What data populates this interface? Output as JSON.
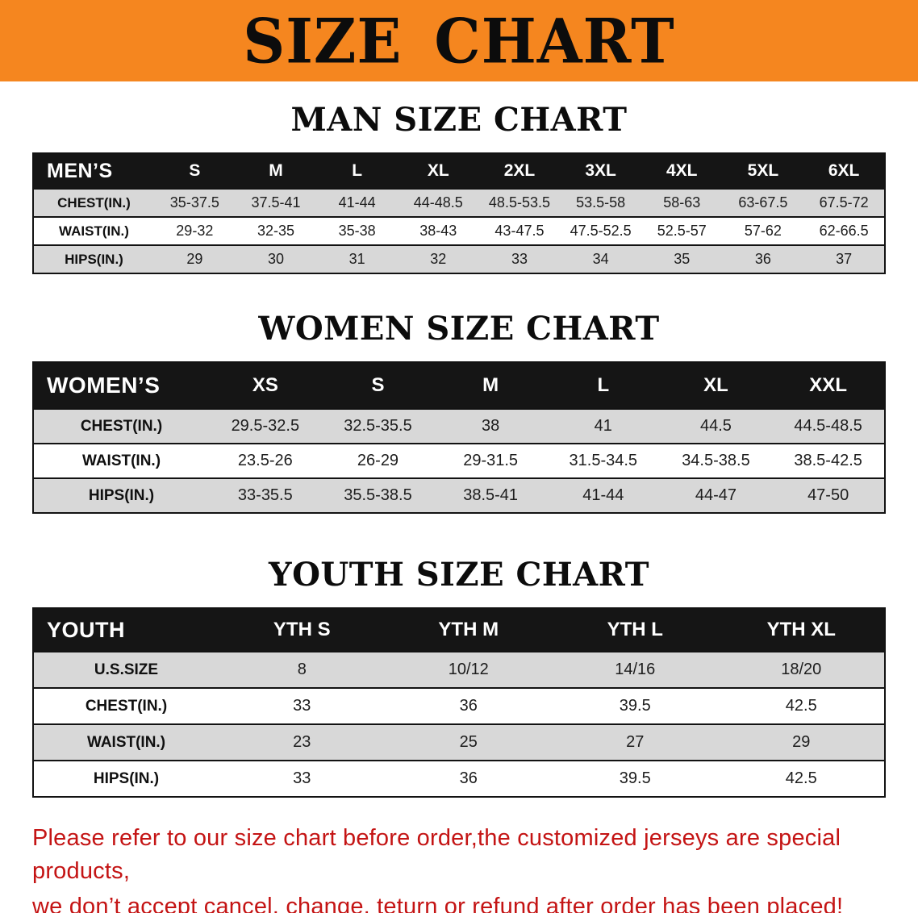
{
  "banner": {
    "title": "SIZE CHART"
  },
  "colors": {
    "banner-bg": "#F5861F",
    "table-header-bg": "#151515",
    "row-shade": "#D8D8D8",
    "note-red": "#C41414"
  },
  "sections": {
    "men": {
      "heading": "MAN SIZE CHART",
      "table": {
        "header": [
          "MEN’S",
          "S",
          "M",
          "L",
          "XL",
          "2XL",
          "3XL",
          "4XL",
          "5XL",
          "6XL"
        ],
        "rows": [
          {
            "label": "CHEST(IN.)",
            "values": [
              "35-37.5",
              "37.5-41",
              "41-44",
              "44-48.5",
              "48.5-53.5",
              "53.5-58",
              "58-63",
              "63-67.5",
              "67.5-72"
            ]
          },
          {
            "label": "WAIST(IN.)",
            "values": [
              "29-32",
              "32-35",
              "35-38",
              "38-43",
              "43-47.5",
              "47.5-52.5",
              "52.5-57",
              "57-62",
              "62-66.5"
            ]
          },
          {
            "label": "HIPS(IN.)",
            "values": [
              "29",
              "30",
              "31",
              "32",
              "33",
              "34",
              "35",
              "36",
              "37"
            ]
          }
        ]
      }
    },
    "women": {
      "heading": "WOMEN SIZE CHART",
      "table": {
        "header": [
          "WOMEN’S",
          "XS",
          "S",
          "M",
          "L",
          "XL",
          "XXL"
        ],
        "rows": [
          {
            "label": "CHEST(IN.)",
            "values": [
              "29.5-32.5",
              "32.5-35.5",
              "38",
              "41",
              "44.5",
              "44.5-48.5"
            ]
          },
          {
            "label": "WAIST(IN.)",
            "values": [
              "23.5-26",
              "26-29",
              "29-31.5",
              "31.5-34.5",
              "34.5-38.5",
              "38.5-42.5"
            ]
          },
          {
            "label": "HIPS(IN.)",
            "values": [
              "33-35.5",
              "35.5-38.5",
              "38.5-41",
              "41-44",
              "44-47",
              "47-50"
            ]
          }
        ]
      }
    },
    "youth": {
      "heading": "YOUTH SIZE CHART",
      "table": {
        "header": [
          "YOUTH",
          "YTH S",
          "YTH M",
          "YTH L",
          "YTH XL"
        ],
        "rows": [
          {
            "label": "U.S.SIZE",
            "values": [
              "8",
              "10/12",
              "14/16",
              "18/20"
            ]
          },
          {
            "label": "CHEST(IN.)",
            "values": [
              "33",
              "36",
              "39.5",
              "42.5"
            ]
          },
          {
            "label": "WAIST(IN.)",
            "values": [
              "23",
              "25",
              "27",
              "29"
            ]
          },
          {
            "label": "HIPS(IN.)",
            "values": [
              "33",
              "36",
              "39.5",
              "42.5"
            ]
          }
        ]
      }
    }
  },
  "footer": {
    "line1": "Please refer to our size chart before order,the customized jerseys are special products,",
    "line2": "we don’t accept cancel, change, teturn or refund after order has been placed!"
  }
}
